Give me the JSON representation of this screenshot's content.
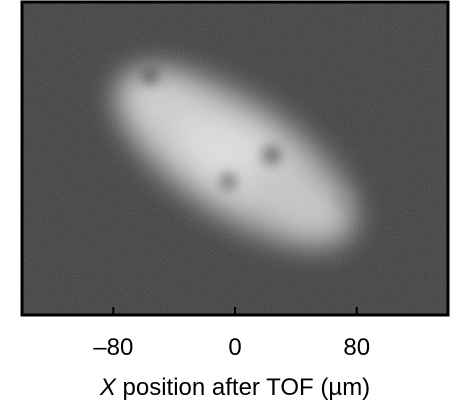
{
  "chart_data": {
    "type": "heatmap",
    "title": "",
    "xlabel": "X position after TOF (µm)",
    "xlabel_parts": {
      "variable": "X",
      "rest": " position after TOF (µm)"
    },
    "ylabel": "",
    "xlim": [
      -140,
      140
    ],
    "xticks": [
      {
        "value": -80,
        "label": "–80"
      },
      {
        "value": 0,
        "label": "0"
      },
      {
        "value": 80,
        "label": "80"
      }
    ],
    "grid": false,
    "legend": "none",
    "colormap": "grayscale",
    "background_intensity": 0.2,
    "cloud": {
      "description_free": true,
      "intensity": 0.85
    },
    "colors": {
      "background": "#3a3a3a",
      "cloud_peak": "#e6e6e6",
      "frame": "#000000",
      "text": "#000000"
    }
  }
}
